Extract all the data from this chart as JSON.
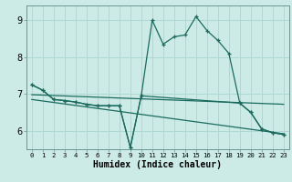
{
  "xlabel": "Humidex (Indice chaleur)",
  "bg_color": "#cceae6",
  "grid_color": "#aad4d0",
  "line_color": "#1a6b5e",
  "xlim": [
    -0.5,
    23.5
  ],
  "ylim": [
    5.5,
    9.4
  ],
  "xticks": [
    0,
    1,
    2,
    3,
    4,
    5,
    6,
    7,
    8,
    9,
    10,
    11,
    12,
    13,
    14,
    15,
    16,
    17,
    18,
    19,
    20,
    21,
    22,
    23
  ],
  "yticks": [
    6,
    7,
    8,
    9
  ],
  "series_main_x": [
    0,
    1,
    2,
    3,
    4,
    5,
    6,
    7,
    8,
    9,
    10,
    11,
    12,
    13,
    14,
    15,
    16,
    17,
    18,
    19,
    20,
    21,
    22,
    23
  ],
  "series_main_y": [
    7.25,
    7.1,
    6.85,
    6.82,
    6.78,
    6.72,
    6.68,
    6.68,
    6.68,
    5.55,
    6.95,
    9.0,
    8.35,
    8.55,
    8.6,
    9.1,
    8.72,
    8.45,
    8.1,
    6.75,
    6.5,
    6.05,
    5.95,
    5.9
  ],
  "series_dot_x": [
    0,
    1,
    2,
    3,
    4,
    5,
    6,
    7,
    8,
    9,
    10,
    19,
    20,
    21,
    22,
    23
  ],
  "series_dot_y": [
    7.25,
    7.1,
    6.85,
    6.82,
    6.78,
    6.72,
    6.68,
    6.68,
    6.68,
    5.55,
    6.95,
    6.75,
    6.5,
    6.05,
    5.95,
    5.9
  ],
  "trend1_x": [
    0,
    23
  ],
  "trend1_y": [
    6.98,
    6.72
  ],
  "trend2_x": [
    0,
    23
  ],
  "trend2_y": [
    6.85,
    5.92
  ]
}
